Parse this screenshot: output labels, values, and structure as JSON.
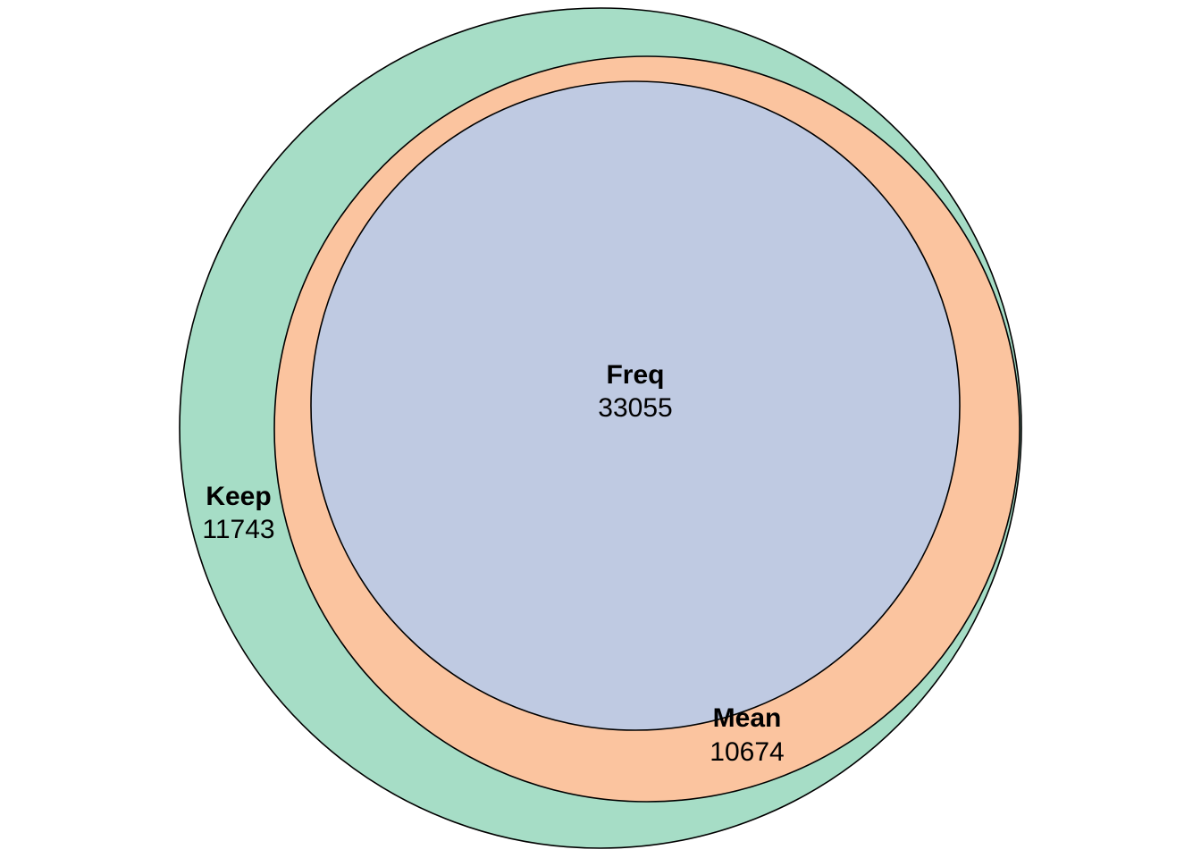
{
  "chart_data": {
    "type": "venn",
    "sets": [
      {
        "id": "keep",
        "name": "Keep",
        "count": "11743",
        "color": "#a6ddc6"
      },
      {
        "id": "mean",
        "name": "Mean",
        "count": "10674",
        "color": "#fbc49f"
      },
      {
        "id": "freq",
        "name": "Freq",
        "count": "33055",
        "color": "#bfcae2"
      }
    ],
    "nesting": "Freq inside Mean inside Keep",
    "outline_color": "#000000"
  }
}
